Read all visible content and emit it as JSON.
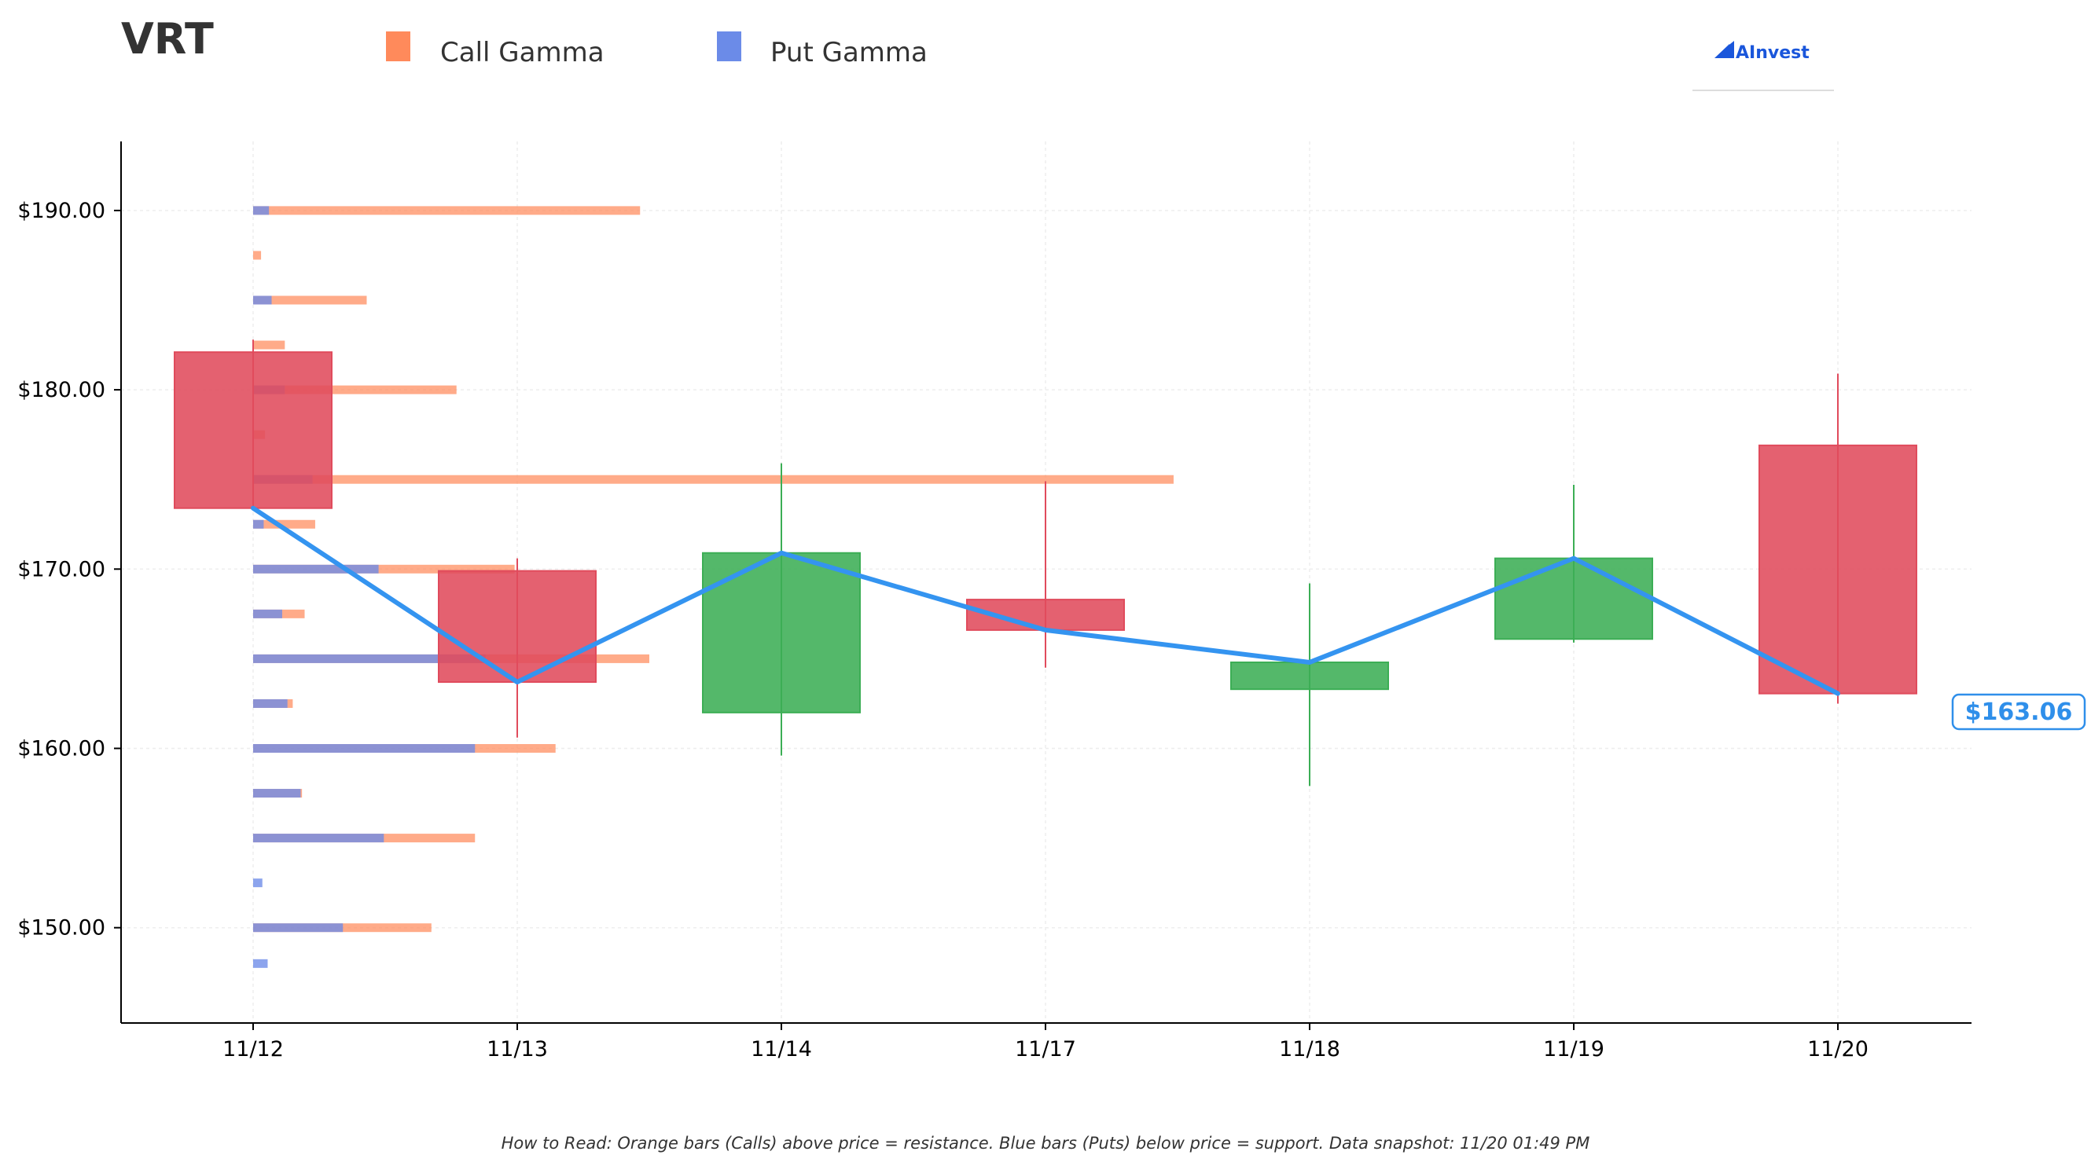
{
  "chart_data": {
    "type": "candlestick",
    "title": "VRT",
    "legend": [
      {
        "name": "Call Gamma",
        "color": "#ff8a5b"
      },
      {
        "name": "Put Gamma",
        "color": "#6b8be8"
      }
    ],
    "legend_position": "top",
    "brand": "AInvest",
    "categories": [
      "11/12",
      "11/13",
      "11/14",
      "11/17",
      "11/18",
      "11/19",
      "11/20"
    ],
    "candles": [
      {
        "date": "11/12",
        "open": 182.1,
        "high": 182.8,
        "low": 173.4,
        "close": 173.4
      },
      {
        "date": "11/13",
        "open": 169.9,
        "high": 170.6,
        "low": 160.6,
        "close": 163.7
      },
      {
        "date": "11/14",
        "open": 162.0,
        "high": 175.9,
        "low": 159.6,
        "close": 170.9
      },
      {
        "date": "11/17",
        "open": 168.3,
        "high": 174.9,
        "low": 164.5,
        "close": 166.6
      },
      {
        "date": "11/18",
        "open": 163.3,
        "high": 169.2,
        "low": 157.9,
        "close": 164.8
      },
      {
        "date": "11/19",
        "open": 166.1,
        "high": 174.7,
        "low": 165.9,
        "close": 170.6
      },
      {
        "date": "11/20",
        "open": 176.9,
        "high": 180.9,
        "low": 162.5,
        "close": 163.06
      }
    ],
    "close_line": [
      173.4,
      163.7,
      170.9,
      166.6,
      164.8,
      170.6,
      163.06
    ],
    "last_price_label": "$163.06",
    "gamma_bars": [
      {
        "strike": 190,
        "call": 2.93,
        "put": 0.12
      },
      {
        "strike": 187.5,
        "call": 0.06,
        "put": 0
      },
      {
        "strike": 185,
        "call": 0.86,
        "put": 0.14
      },
      {
        "strike": 182.5,
        "call": 0.24,
        "put": 0
      },
      {
        "strike": 180,
        "call": 1.54,
        "put": 0.24
      },
      {
        "strike": 177.5,
        "call": 0.09,
        "put": 0
      },
      {
        "strike": 175,
        "call": 6.97,
        "put": 0.45
      },
      {
        "strike": 172.5,
        "call": 0.47,
        "put": 0.08
      },
      {
        "strike": 170,
        "call": 1.98,
        "put": 0.95
      },
      {
        "strike": 167.5,
        "call": 0.39,
        "put": 0.22
      },
      {
        "strike": 165,
        "call": 3.0,
        "put": 1.76
      },
      {
        "strike": 162.5,
        "call": 0.3,
        "put": 0.26
      },
      {
        "strike": 160,
        "call": 2.29,
        "put": 1.68
      },
      {
        "strike": 157.5,
        "call": 0.37,
        "put": 0.36
      },
      {
        "strike": 155,
        "call": 1.68,
        "put": 0.99
      },
      {
        "strike": 152.5,
        "call": 0,
        "put": 0.07
      },
      {
        "strike": 150,
        "call": 1.35,
        "put": 0.68
      },
      {
        "strike": 148,
        "call": 0,
        "put": 0.11
      }
    ],
    "y_ticks": [
      150,
      160,
      170,
      180,
      190
    ],
    "y_tick_labels": [
      "$150.00",
      "$160.00",
      "$170.00",
      "$180.00",
      "$190.00"
    ],
    "ylim": [
      145.8,
      194.9
    ],
    "grid": true,
    "colors": {
      "up": "#3cae55",
      "down": "#e04b5c",
      "line": "#3494f0",
      "call": "#ff8a5b",
      "put": "#6b8be8"
    }
  },
  "footnote": "How to Read: Orange bars (Calls) above price = resistance. Blue bars (Puts) below price = support. Data snapshot: 11/20 01:49 PM"
}
